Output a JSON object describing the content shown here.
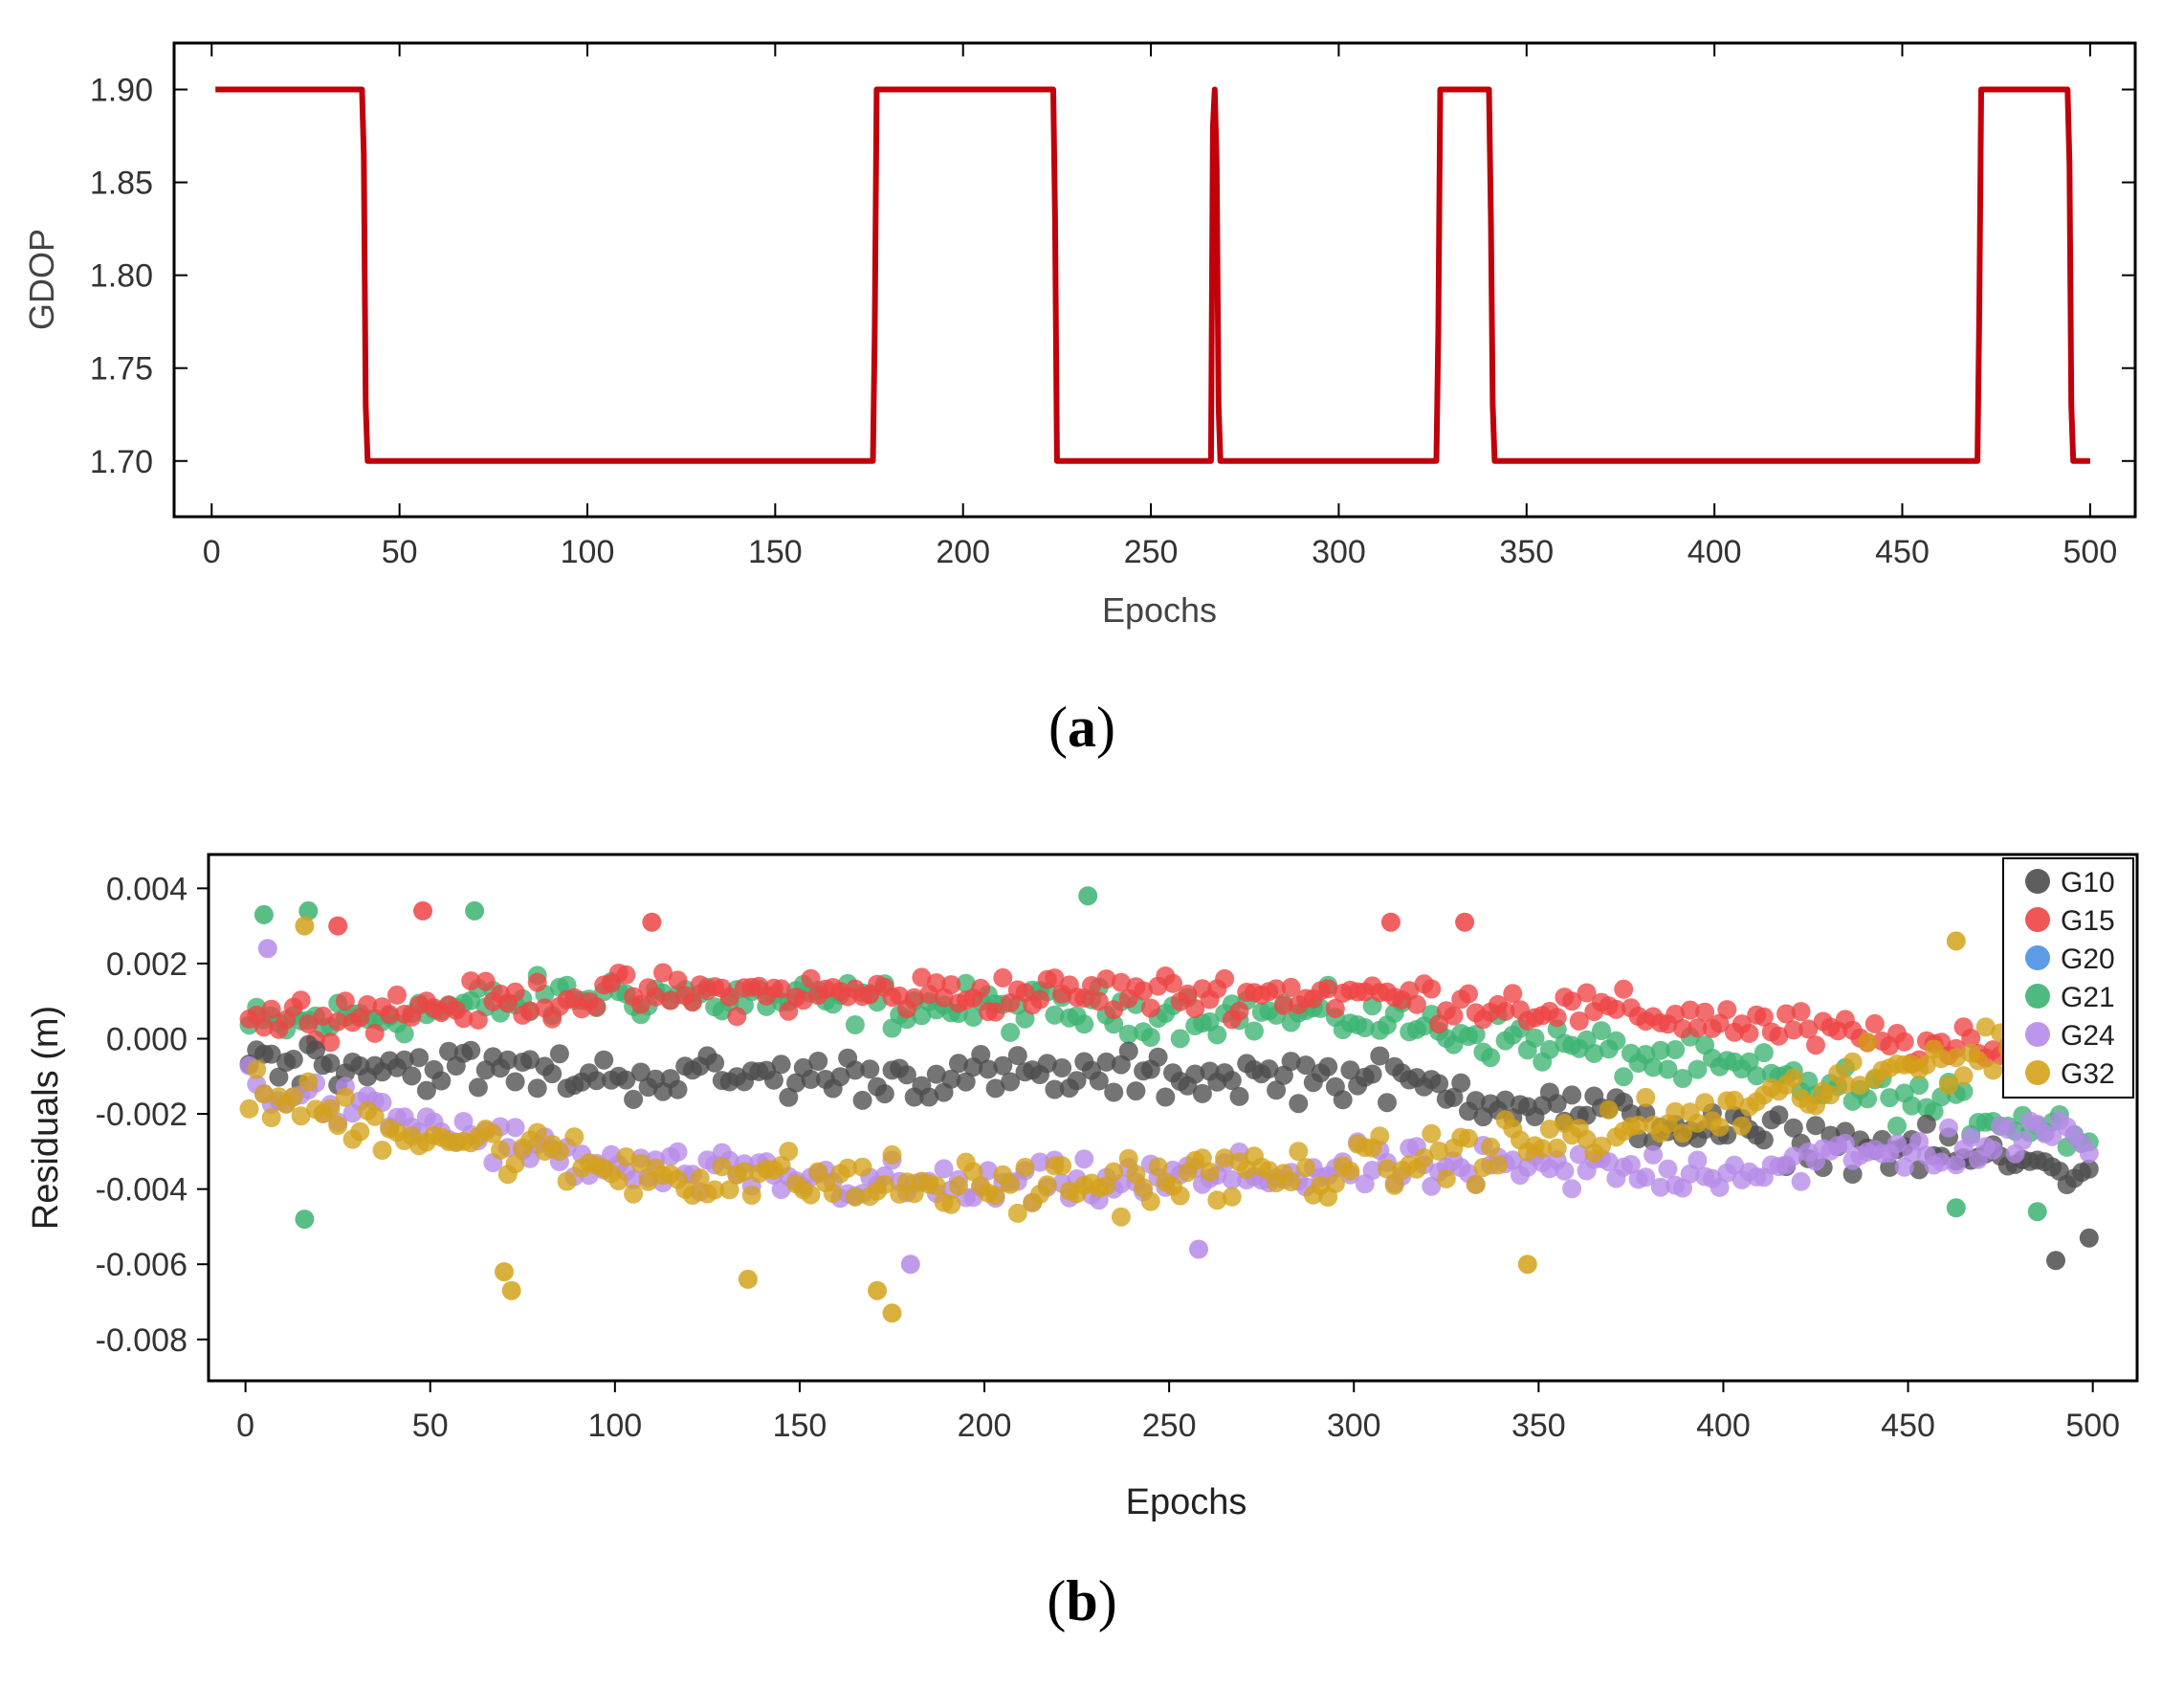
{
  "chart_data": [
    {
      "type": "line",
      "panel": "a",
      "caption_letter": "a",
      "xlabel": "Epochs",
      "ylabel": "GDOP",
      "xlim": [
        -10,
        512
      ],
      "ylim": [
        1.67,
        1.925
      ],
      "xticks": [
        0,
        50,
        100,
        150,
        200,
        250,
        300,
        350,
        400,
        450,
        500
      ],
      "xtick_labels": [
        "0",
        "50",
        "100",
        "150",
        "200",
        "250",
        "300",
        "350",
        "400",
        "450",
        "500"
      ],
      "yticks": [
        1.7,
        1.75,
        1.8,
        1.85,
        1.9
      ],
      "ytick_labels": [
        "1.70",
        "1.75",
        "1.80",
        "1.85",
        "1.90"
      ],
      "color": "#c0000a",
      "series": [
        {
          "name": "GDOP",
          "x": [
            1,
            40,
            40.5,
            41,
            41.5,
            42,
            176,
            176.5,
            177,
            177.5,
            224,
            224.5,
            225,
            225.5,
            266,
            266.5,
            267,
            267.5,
            268,
            268.5,
            269,
            269.5,
            326,
            326.5,
            327,
            327.5,
            340,
            340.5,
            341,
            341.5,
            470,
            470.5,
            471,
            471.5,
            494,
            494.5,
            495,
            495.5,
            500
          ],
          "y": [
            1.9,
            1.9,
            1.865,
            1.73,
            1.7,
            1.7,
            1.7,
            1.77,
            1.9,
            1.9,
            1.9,
            1.83,
            1.7,
            1.7,
            1.7,
            1.88,
            1.9,
            1.86,
            1.73,
            1.7,
            1.7,
            1.7,
            1.7,
            1.77,
            1.9,
            1.9,
            1.9,
            1.83,
            1.73,
            1.7,
            1.7,
            1.78,
            1.9,
            1.9,
            1.9,
            1.86,
            1.73,
            1.7,
            1.7
          ]
        }
      ]
    },
    {
      "type": "scatter",
      "panel": "b",
      "caption_letter": "b",
      "xlabel": "Epochs",
      "ylabel": "Residuals (m)",
      "xlim": [
        -10,
        512
      ],
      "ylim": [
        -0.0091,
        0.0049
      ],
      "xticks": [
        0,
        50,
        100,
        150,
        200,
        250,
        300,
        350,
        400,
        450,
        500
      ],
      "xtick_labels": [
        "0",
        "50",
        "100",
        "150",
        "200",
        "250",
        "300",
        "350",
        "400",
        "450",
        "500"
      ],
      "yticks": [
        0.004,
        0.002,
        0.0,
        -0.002,
        -0.004,
        -0.006,
        -0.008
      ],
      "ytick_labels": [
        "0.004",
        "0.002",
        "0.000",
        "-0.002",
        "-0.004",
        "-0.006",
        "-0.008"
      ],
      "legend_position": "top-right",
      "epochs": {
        "start": 1,
        "end": 500,
        "step": 2
      },
      "series": [
        {
          "name": "G10",
          "color": "#4d4d4d",
          "trend": [
            [
              0,
              -0.0005
            ],
            [
              100,
              -0.001
            ],
            [
              200,
              -0.001
            ],
            [
              300,
              -0.001
            ],
            [
              400,
              -0.0025
            ],
            [
              500,
              -0.0035
            ]
          ],
          "spread": 0.0009,
          "outliers": [
            [
              490,
              -0.0059
            ],
            [
              499,
              -0.0053
            ]
          ]
        },
        {
          "name": "G15",
          "color": "#ee4444",
          "trend": [
            [
              0,
              0.0005
            ],
            [
              100,
              0.0012
            ],
            [
              200,
              0.0012
            ],
            [
              300,
              0.0012
            ],
            [
              400,
              0.0005
            ],
            [
              500,
              -0.0008
            ]
          ],
          "spread": 0.0008,
          "outliers": [
            [
              25,
              0.003
            ],
            [
              48,
              0.0034
            ],
            [
              110,
              0.0031
            ],
            [
              310,
              0.0031
            ],
            [
              330,
              0.0031
            ]
          ]
        },
        {
          "name": "G20",
          "color": "#4a90e2",
          "trend": [
            [
              0,
              0
            ],
            [
              500,
              0
            ]
          ],
          "spread": 0,
          "hidden": true,
          "outliers": []
        },
        {
          "name": "G21",
          "color": "#3cb371",
          "trend": [
            [
              0,
              0.0003
            ],
            [
              100,
              0.0012
            ],
            [
              200,
              0.0008
            ],
            [
              300,
              0.0006
            ],
            [
              400,
              -0.0008
            ],
            [
              500,
              -0.0025
            ]
          ],
          "spread": 0.0009,
          "outliers": [
            [
              5,
              0.0033
            ],
            [
              17,
              0.0034
            ],
            [
              62,
              0.0034
            ],
            [
              228,
              0.0038
            ],
            [
              16,
              -0.0048
            ],
            [
              463,
              -0.0045
            ],
            [
              485,
              -0.0046
            ]
          ]
        },
        {
          "name": "G24",
          "color": "#b68ae8",
          "trend": [
            [
              0,
              -0.0012
            ],
            [
              100,
              -0.0035
            ],
            [
              200,
              -0.004
            ],
            [
              300,
              -0.0035
            ],
            [
              400,
              -0.0035
            ],
            [
              500,
              -0.0025
            ]
          ],
          "spread": 0.0009,
          "outliers": [
            [
              6,
              0.0024
            ],
            [
              180,
              -0.006
            ],
            [
              258,
              -0.0056
            ]
          ]
        },
        {
          "name": "G32",
          "color": "#d4a21a",
          "trend": [
            [
              0,
              -0.0015
            ],
            [
              100,
              -0.0035
            ],
            [
              200,
              -0.004
            ],
            [
              300,
              -0.0035
            ],
            [
              400,
              -0.002
            ],
            [
              500,
              0.0005
            ]
          ],
          "spread": 0.0011,
          "outliers": [
            [
              16,
              0.003
            ],
            [
              70,
              -0.0062
            ],
            [
              72,
              -0.0067
            ],
            [
              136,
              -0.0064
            ],
            [
              171,
              -0.0067
            ],
            [
              175,
              -0.0073
            ],
            [
              347,
              -0.006
            ],
            [
              463,
              0.0026
            ]
          ]
        }
      ]
    }
  ]
}
